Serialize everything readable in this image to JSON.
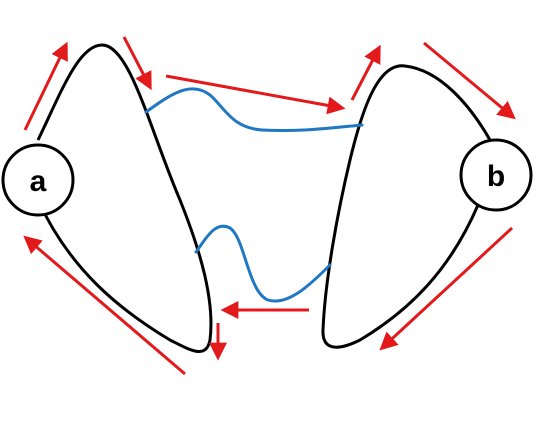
{
  "nodes": {
    "a": {
      "label": "a"
    },
    "b": {
      "label": "b"
    }
  },
  "colors": {
    "background": "#ffffff",
    "loop_stroke": "#000000",
    "connector": "#1f78c1",
    "arrow": "#e31a1c"
  }
}
